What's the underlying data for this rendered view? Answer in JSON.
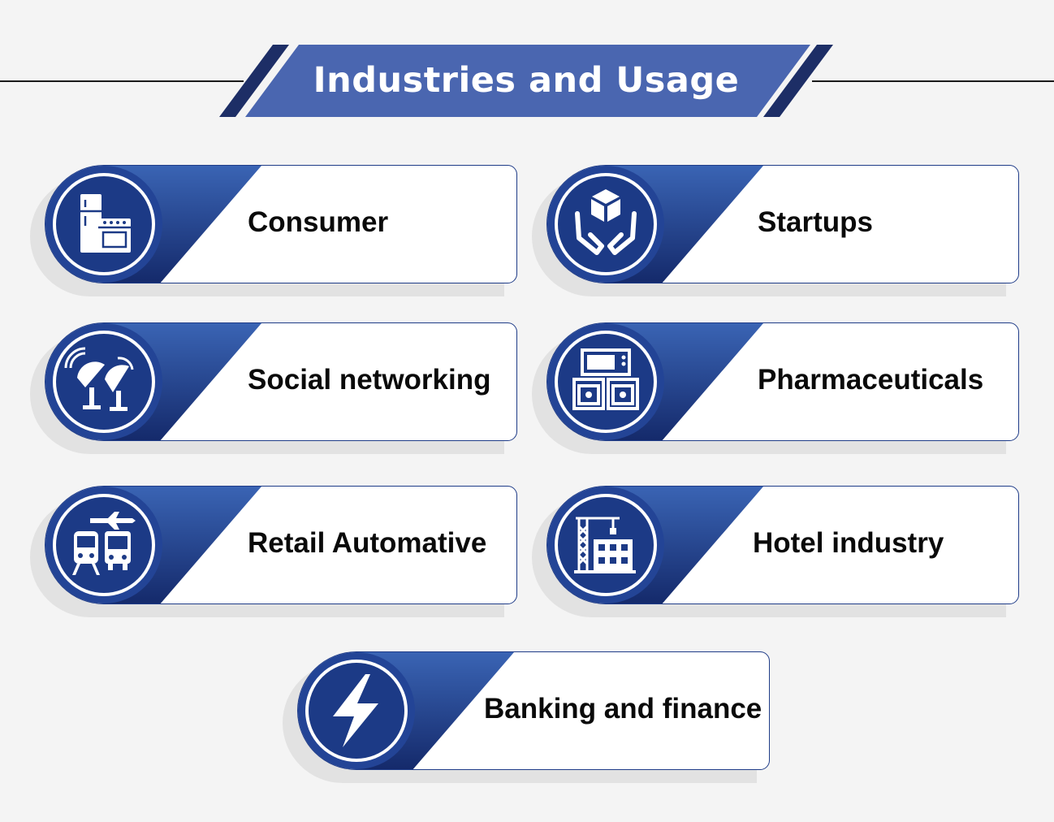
{
  "title": "Industries and Usage",
  "colors": {
    "primary": "#2f55a8",
    "banner": "#4a66b0",
    "dark_navy": "#152b69",
    "accent_stripe": "#1d2e66",
    "text": "#0a0a0a",
    "background": "#f4f4f4"
  },
  "industries": [
    {
      "label": "Consumer",
      "icon": "home-appliances-icon"
    },
    {
      "label": "Startups",
      "icon": "hands-holding-box-icon"
    },
    {
      "label": "Social networking",
      "icon": "satellite-dishes-icon"
    },
    {
      "label": "Pharmaceuticals",
      "icon": "server-cabinet-icon"
    },
    {
      "label": "Retail Automative",
      "icon": "transport-icon"
    },
    {
      "label": "Hotel industry",
      "icon": "construction-crane-building-icon"
    },
    {
      "label": "Banking and finance",
      "icon": "lightning-bolt-icon"
    }
  ]
}
